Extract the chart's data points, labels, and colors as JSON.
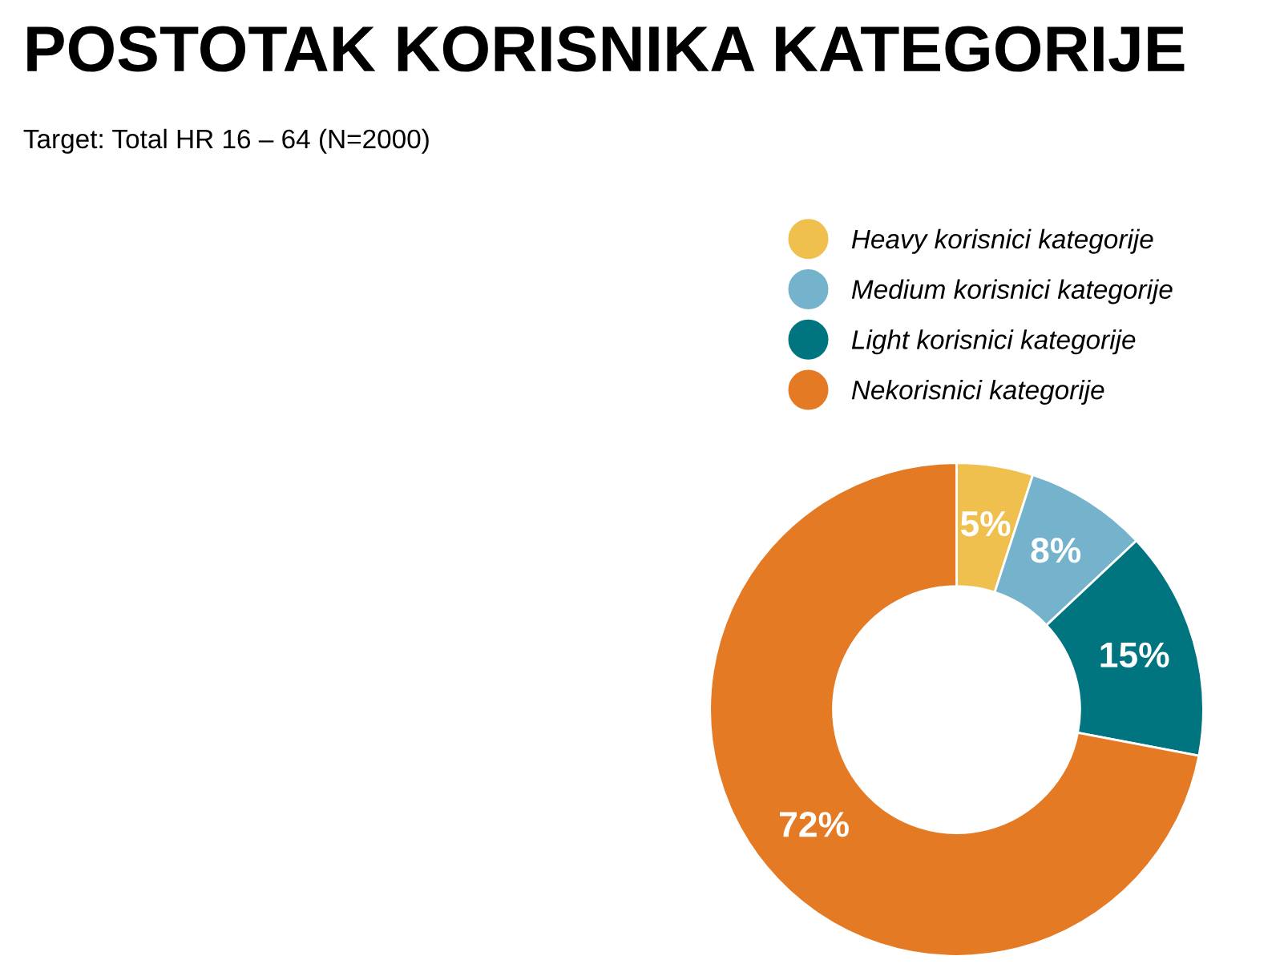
{
  "chart_data": {
    "type": "donut",
    "title": "POSTOTAK KORISNIKA KATEGORIJE",
    "subtitle": "Target: Total HR 16 – 64 (N=2000)",
    "categories": [
      "Heavy korisnici kategorije",
      "Medium korisnici kategorije",
      "Light korisnici kategorije",
      "Nekorisnici kategorije"
    ],
    "values": [
      5,
      8,
      15,
      72
    ],
    "colors": [
      "#f0c04e",
      "#74b3cb",
      "#00757f",
      "#e57a24"
    ],
    "value_labels": [
      "5%",
      "8%",
      "15%",
      "72%"
    ],
    "legend": "top"
  }
}
